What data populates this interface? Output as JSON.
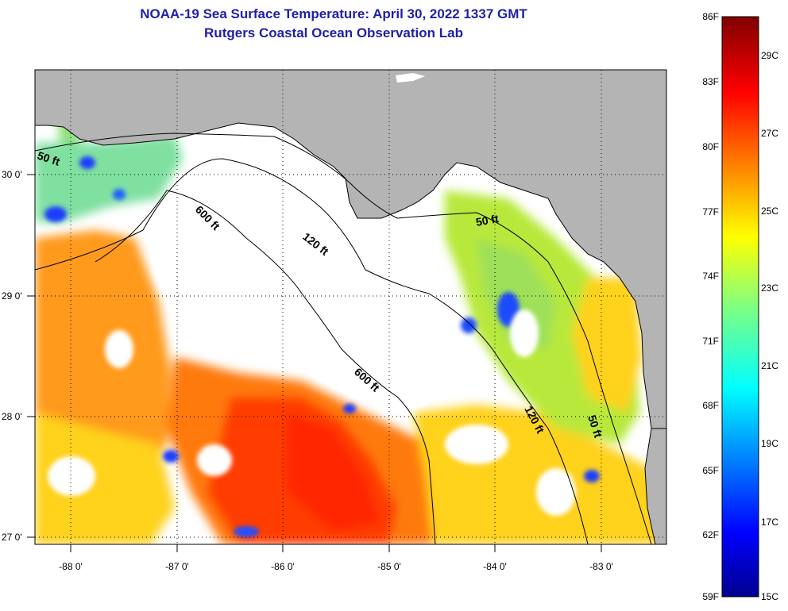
{
  "header": {
    "title": "NOAA-19 Sea Surface Temperature:  April 30, 2022 1337 GMT",
    "subtitle": "Rutgers Coastal Ocean Observation Lab"
  },
  "map": {
    "lon_ticks": [
      "-88 0'",
      "-87 0'",
      "-86 0'",
      "-85 0'",
      "-84 0'",
      "-83 0'"
    ],
    "lat_ticks": [
      "30 0'",
      "29 0'",
      "28 0'",
      "27 0'"
    ],
    "contours": [
      "50 ft",
      "600 ft",
      "120 ft",
      "50 ft",
      "600 ft",
      "120 ft",
      "50 ft"
    ],
    "colors": {
      "land": "#b4b4b4",
      "cloud": "#ffffff",
      "warm": "#ff4a00",
      "cool": "#0050ff"
    }
  },
  "colorbar": {
    "fahrenheit": [
      "86F",
      "83F",
      "80F",
      "77F",
      "74F",
      "71F",
      "68F",
      "65F",
      "62F",
      "59F"
    ],
    "celsius": [
      "29C",
      "27C",
      "25C",
      "23C",
      "21C",
      "19C",
      "17C",
      "15C"
    ]
  }
}
